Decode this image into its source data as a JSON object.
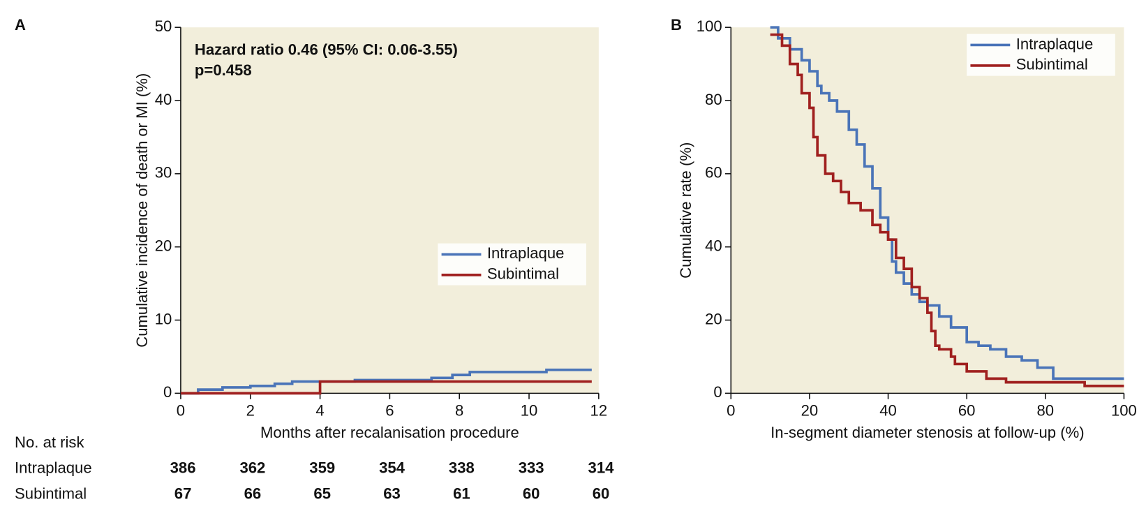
{
  "chart_data": [
    {
      "type": "line",
      "panel_label": "A",
      "x_label": "Months after recalanisation procedure",
      "y_label": "Cumulative incidence of death or MI (%)",
      "xlim": [
        0,
        12
      ],
      "xticks": [
        0,
        2,
        4,
        6,
        8,
        10,
        12
      ],
      "ylim": [
        0,
        50
      ],
      "yticks": [
        0,
        10,
        20,
        30,
        40,
        50
      ],
      "step": true,
      "background": "#f2eedb",
      "legend": "center right",
      "annotations": [
        "Hazard ratio 0.46 (95% CI: 0.06-3.55)",
        "p=0.458"
      ],
      "series": [
        {
          "name": "Intraplaque",
          "color": "#4a74b8",
          "x": [
            0,
            0.5,
            1.2,
            2,
            2.7,
            3.2,
            5,
            6.5,
            7.2,
            7.8,
            8.3,
            10.5,
            11.8
          ],
          "values": [
            0,
            0.5,
            0.8,
            1.0,
            1.3,
            1.6,
            1.8,
            1.8,
            2.1,
            2.5,
            2.9,
            3.2,
            3.2
          ]
        },
        {
          "name": "Subintimal",
          "color": "#a0201f",
          "x": [
            0,
            4,
            11.8
          ],
          "values": [
            0,
            1.6,
            1.6
          ]
        }
      ],
      "risk_table": {
        "title": "No. at risk",
        "rows": [
          {
            "name": "Intraplaque",
            "color": "#4a74b8",
            "values": [
              386,
              362,
              359,
              354,
              338,
              333,
              314
            ]
          },
          {
            "name": "Subintimal",
            "color": "#a0201f",
            "values": [
              67,
              66,
              65,
              63,
              61,
              60,
              60
            ]
          }
        ]
      }
    },
    {
      "type": "line",
      "panel_label": "B",
      "x_label": "In-segment diameter stenosis at follow-up (%)",
      "y_label": "Cumulative rate (%)",
      "xlim": [
        0,
        100
      ],
      "xticks": [
        0,
        20,
        40,
        60,
        80,
        100
      ],
      "ylim": [
        0,
        100
      ],
      "yticks": [
        0,
        20,
        40,
        60,
        80,
        100
      ],
      "step": true,
      "background": "#f2eedb",
      "legend": "upper right",
      "series": [
        {
          "name": "Intraplaque",
          "color": "#4a74b8",
          "x": [
            10,
            12,
            15,
            18,
            20,
            22,
            23,
            25,
            27,
            30,
            32,
            34,
            36,
            38,
            40,
            41,
            42,
            44,
            46,
            48,
            50,
            53,
            56,
            60,
            63,
            66,
            70,
            74,
            78,
            82,
            90,
            100
          ],
          "values": [
            100,
            97,
            94,
            91,
            88,
            84,
            82,
            80,
            77,
            72,
            68,
            62,
            56,
            48,
            42,
            36,
            33,
            30,
            27,
            25,
            24,
            21,
            18,
            14,
            13,
            12,
            10,
            9,
            7,
            4,
            4,
            4
          ]
        },
        {
          "name": "Subintimal",
          "color": "#a0201f",
          "x": [
            10,
            13,
            15,
            17,
            18,
            20,
            21,
            22,
            24,
            26,
            28,
            30,
            33,
            36,
            38,
            40,
            42,
            44,
            46,
            48,
            50,
            51,
            52,
            53,
            56,
            57,
            60,
            65,
            70,
            80,
            90,
            100
          ],
          "values": [
            98,
            95,
            90,
            87,
            82,
            78,
            70,
            65,
            60,
            58,
            55,
            52,
            50,
            46,
            44,
            42,
            37,
            34,
            29,
            26,
            22,
            17,
            13,
            12,
            10,
            8,
            6,
            4,
            3,
            3,
            2,
            2
          ]
        }
      ]
    }
  ]
}
